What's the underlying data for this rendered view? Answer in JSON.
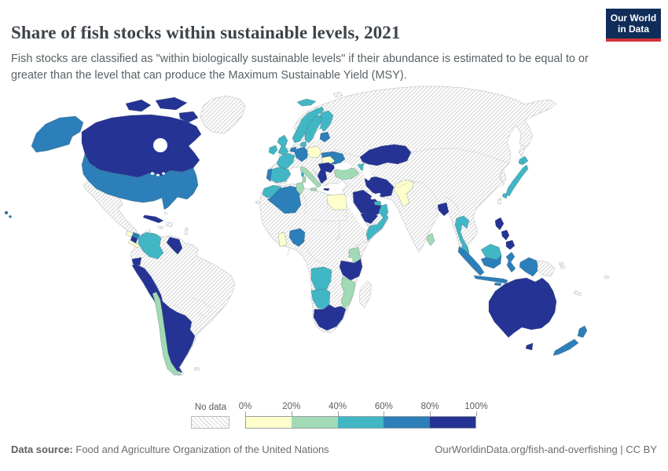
{
  "header": {
    "title": "Share of fish stocks within sustainable levels, 2021",
    "subtitle": "Fish stocks are classified as \"within biologically sustainable levels\" if their abundance is estimated to be equal to or greater than the level that can produce the Maximum Sustainable Yield (MSY).",
    "logo": {
      "line1": "Our World",
      "line2": "in Data",
      "bg_color": "#102d59",
      "accent_color": "#d13239"
    }
  },
  "chart_data": {
    "type": "choropleth_map",
    "title": "Share of fish stocks within sustainable levels, 2021",
    "year": "2021",
    "unit": "% of fish stocks within biologically sustainable levels",
    "legend": {
      "no_data_label": "No data",
      "tick_labels": [
        "0%",
        "20%",
        "40%",
        "60%",
        "80%",
        "100%"
      ],
      "bin_ranges": [
        "0-20%",
        "20-40%",
        "40-60%",
        "60-80%",
        "80-100%"
      ],
      "bin_colors": [
        "#ffffcc",
        "#a1dab4",
        "#41b6c4",
        "#2c7fb8",
        "#253494"
      ],
      "no_data_pattern": "diagonal-hatch"
    },
    "country_bins": {
      "canada": 4,
      "united-states": 3,
      "mexico": -1,
      "greenland": -1,
      "cuba": 4,
      "hispaniola": -1,
      "jamaica": -1,
      "bahamas": -1,
      "lesser-antilles": -1,
      "guatemala": 0,
      "honduras": 3,
      "nicaragua": 4,
      "costa-rica-panama": 0,
      "colombia": 2,
      "venezuela": 4,
      "ecuador": 4,
      "peru": 4,
      "chile": 1,
      "argentina": 4,
      "south-america-no-data": -1,
      "falkland-islands": -1,
      "iceland": 2,
      "ireland": 2,
      "united-kingdom": 2,
      "norway": 2,
      "sweden": 2,
      "finland": 2,
      "denmark": 2,
      "baltic-states": 3,
      "benelux": 3,
      "germany": 3,
      "poland": 0,
      "ukraine": 3,
      "romania": 0,
      "greece-bulgaria": 4,
      "turkey": 1,
      "caucasus": 2,
      "france": 2,
      "spain": 2,
      "portugal": 3,
      "italy": 1,
      "eurasia-no-data": -1,
      "kazakhstan": 4,
      "iran": 4,
      "saudi-arabia": 4,
      "yemen": 4,
      "oman": 2,
      "united-arab-emirates": 2,
      "pakistan": 0,
      "bangladesh": 4,
      "sri-lanka": 1,
      "thailand": 2,
      "japan": 2,
      "malaysia": 2,
      "indonesia": 3,
      "philippines": 4,
      "papua-new-guinea": -1,
      "australia": 4,
      "new-zealand": 3,
      "pacific-islands": -1,
      "new-caledonia": -1,
      "morocco": 2,
      "algeria": 3,
      "tunisia": 1,
      "egypt": 0,
      "ghana": 0,
      "nigeria": 3,
      "somalia": 2,
      "kenya": 1,
      "tanzania": 4,
      "angola": 2,
      "namibia": 2,
      "mozambique-zimbabwe": 1,
      "south-africa": 4,
      "madagascar": -1,
      "africa-no-data": -1,
      "canary-islands": -1
    }
  },
  "footer": {
    "source_label": "Data source:",
    "source": "Food and Agriculture Organization of the United Nations",
    "link": "OurWorldinData.org/fish-and-overfishing | CC BY"
  }
}
